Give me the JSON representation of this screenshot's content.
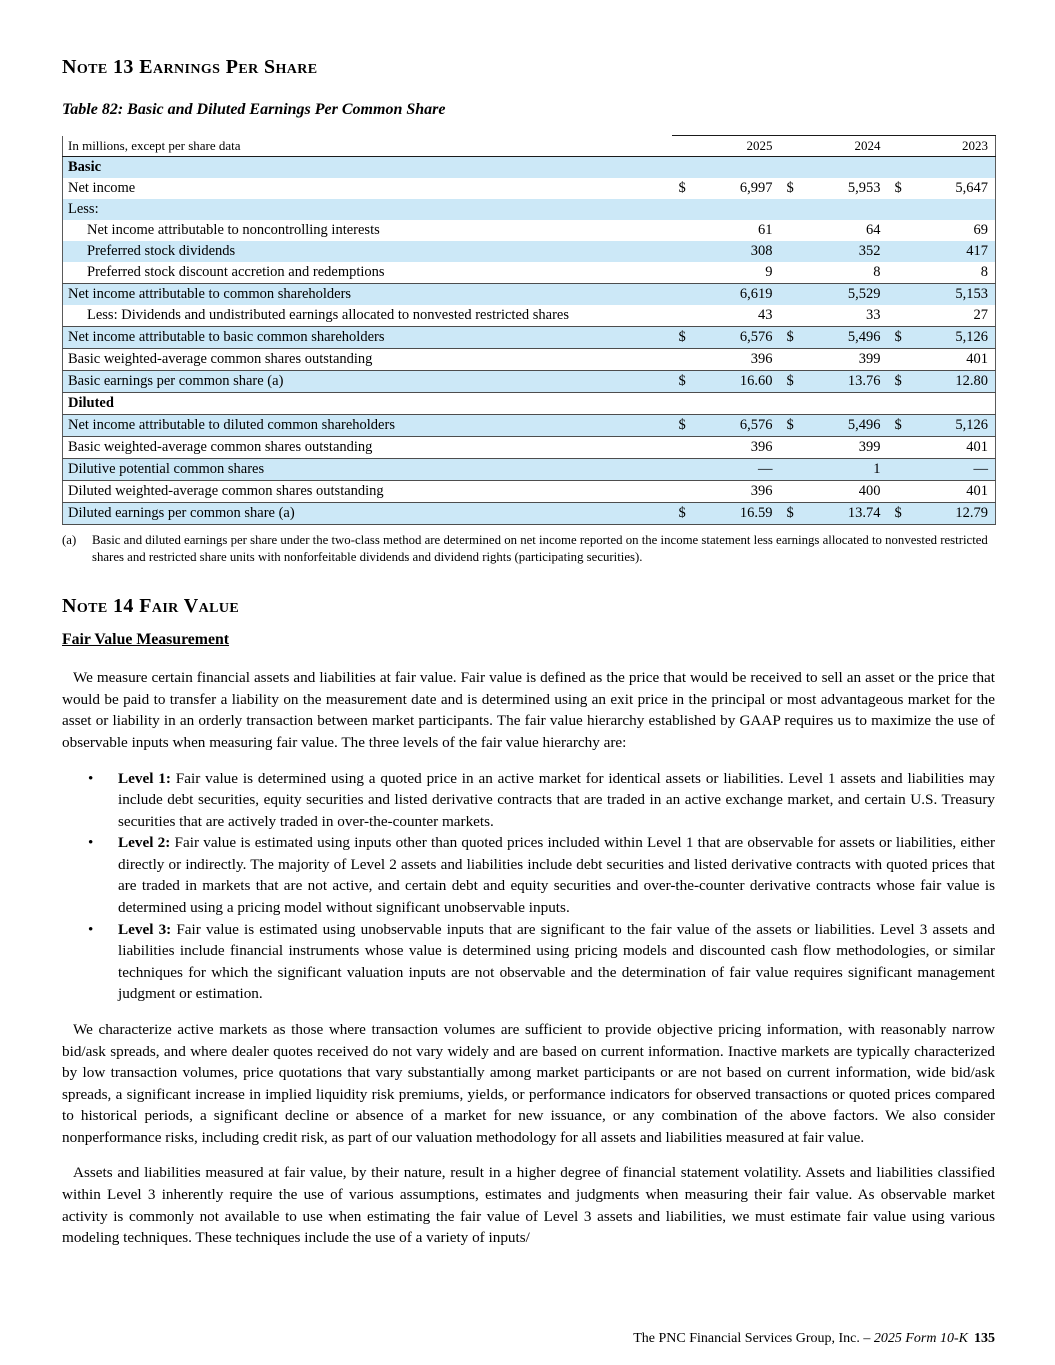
{
  "colors": {
    "row_highlight": "#cce8f7",
    "table_rule": "#4d4d4d",
    "header_rule": "#1a1a1a"
  },
  "note13": {
    "heading": "Note 13 Earnings Per Share",
    "table_title": "Table 82: Basic and Diluted Earnings Per Common Share",
    "table": {
      "unit_label": "In millions, except per share data",
      "years": [
        "2025",
        "2024",
        "2023"
      ],
      "rows": [
        {
          "label": "Basic",
          "bold": true,
          "indent": 0,
          "bg": "blue",
          "rule_top": false,
          "dollar": false,
          "values": [
            "",
            "",
            ""
          ]
        },
        {
          "label": "Net income",
          "bold": false,
          "indent": 0,
          "bg": "white",
          "rule_top": false,
          "dollar": true,
          "values": [
            "6,997",
            "5,953",
            "5,647"
          ]
        },
        {
          "label": "Less:",
          "bold": false,
          "indent": 0,
          "bg": "blue",
          "rule_top": false,
          "dollar": false,
          "values": [
            "",
            "",
            ""
          ]
        },
        {
          "label": "Net income attributable to noncontrolling interests",
          "bold": false,
          "indent": 1,
          "bg": "white",
          "rule_top": false,
          "dollar": false,
          "values": [
            "61",
            "64",
            "69"
          ]
        },
        {
          "label": "Preferred stock dividends",
          "bold": false,
          "indent": 1,
          "bg": "blue",
          "rule_top": false,
          "dollar": false,
          "values": [
            "308",
            "352",
            "417"
          ]
        },
        {
          "label": "Preferred stock discount accretion and redemptions",
          "bold": false,
          "indent": 1,
          "bg": "white",
          "rule_top": false,
          "dollar": false,
          "values": [
            "9",
            "8",
            "8"
          ]
        },
        {
          "label": "Net income attributable to common shareholders",
          "bold": false,
          "indent": 0,
          "bg": "blue",
          "rule_top": true,
          "dollar": false,
          "values": [
            "6,619",
            "5,529",
            "5,153"
          ]
        },
        {
          "label": "Less: Dividends and undistributed earnings allocated to nonvested restricted shares",
          "bold": false,
          "indent": 1,
          "bg": "white",
          "rule_top": false,
          "dollar": false,
          "values": [
            "43",
            "33",
            "27"
          ]
        },
        {
          "label": "Net income attributable to basic common shareholders",
          "bold": false,
          "indent": 0,
          "bg": "blue",
          "rule_top": true,
          "dollar": true,
          "values": [
            "6,576",
            "5,496",
            "5,126"
          ]
        },
        {
          "label": "Basic weighted-average common shares outstanding",
          "bold": false,
          "indent": 0,
          "bg": "white",
          "rule_top": true,
          "dollar": false,
          "values": [
            "396",
            "399",
            "401"
          ]
        },
        {
          "label": "Basic earnings per common share (a)",
          "bold": false,
          "indent": 0,
          "bg": "blue",
          "rule_top": true,
          "dollar": true,
          "values": [
            "16.60",
            "13.76",
            "12.80"
          ]
        },
        {
          "label": "Diluted",
          "bold": true,
          "indent": 0,
          "bg": "white",
          "rule_top": true,
          "dollar": false,
          "values": [
            "",
            "",
            ""
          ]
        },
        {
          "label": "Net income attributable to diluted common shareholders",
          "bold": false,
          "indent": 0,
          "bg": "blue",
          "rule_top": true,
          "dollar": true,
          "values": [
            "6,576",
            "5,496",
            "5,126"
          ]
        },
        {
          "label": "Basic weighted-average common shares outstanding",
          "bold": false,
          "indent": 0,
          "bg": "white",
          "rule_top": true,
          "dollar": false,
          "values": [
            "396",
            "399",
            "401"
          ]
        },
        {
          "label": "Dilutive potential common shares",
          "bold": false,
          "indent": 0,
          "bg": "blue",
          "rule_top": true,
          "dollar": false,
          "values": [
            "—",
            "1",
            "—"
          ]
        },
        {
          "label": "Diluted weighted-average common shares outstanding",
          "bold": false,
          "indent": 0,
          "bg": "white",
          "rule_top": true,
          "dollar": false,
          "values": [
            "396",
            "400",
            "401"
          ]
        },
        {
          "label": "Diluted earnings per common share (a)",
          "bold": false,
          "indent": 0,
          "bg": "blue",
          "rule_top": true,
          "rule_bottom": true,
          "dollar": true,
          "values": [
            "16.59",
            "13.74",
            "12.79"
          ]
        }
      ],
      "footnote_marker": "(a)",
      "footnote_text": "Basic and diluted earnings per share under the two-class method are determined on net income reported on the income statement less earnings allocated to nonvested restricted shares and restricted share units with nonforfeitable dividends and dividend rights (participating securities)."
    }
  },
  "note14": {
    "heading": "Note 14 Fair Value",
    "subheading": "Fair Value Measurement",
    "para1": "We measure certain financial assets and liabilities at fair value. Fair value is defined as the price that would be received to sell an asset or the price that would be paid to transfer a liability on the measurement date and is determined using an exit price in the principal or most advantageous market for the asset or liability in an orderly transaction between market participants. The fair value hierarchy established by GAAP requires us to maximize the use of observable inputs when measuring fair value. The three levels of the fair value hierarchy are:",
    "bullet_glyph": "•",
    "bullets": [
      {
        "lead": "Level 1:",
        "text": " Fair value is determined using a quoted price in an active market for identical assets or liabilities. Level 1 assets and liabilities may include debt securities, equity securities and listed derivative contracts that are traded in an active exchange market, and certain U.S. Treasury securities that are actively traded in over-the-counter markets."
      },
      {
        "lead": "Level 2:",
        "text": " Fair value is estimated using inputs other than quoted prices included within Level 1 that are observable for assets or liabilities, either directly or indirectly. The majority of Level 2 assets and liabilities include debt securities and listed derivative contracts with quoted prices that are traded in markets that are not active, and certain debt and equity securities and over-the-counter derivative contracts whose fair value is determined using a pricing model without significant unobservable inputs."
      },
      {
        "lead": "Level 3:",
        "text": " Fair value is estimated using unobservable inputs that are significant to the fair value of the assets or liabilities. Level 3 assets and liabilities include financial instruments whose value is determined using pricing models and discounted cash flow methodologies, or similar techniques for which the significant valuation inputs are not observable and the determination of fair value requires significant management judgment or estimation."
      }
    ],
    "para2": "We characterize active markets as those where transaction volumes are sufficient to provide objective pricing information, with reasonably narrow bid/ask spreads, and where dealer quotes received do not vary widely and are based on current information. Inactive markets are typically characterized by low transaction volumes, price quotations that vary substantially among market participants or are not based on current information, wide bid/ask spreads, a significant increase in implied liquidity risk premiums, yields, or performance indicators for observed transactions or quoted prices compared to historical periods, a significant decline or absence of a market for new issuance, or any combination of the above factors. We also consider nonperformance risks, including credit risk, as part of our valuation methodology for all assets and liabilities measured at fair value.",
    "para3": "Assets and liabilities measured at fair value, by their nature, result in a higher degree of financial statement volatility. Assets and liabilities classified within Level 3 inherently require the use of various assumptions, estimates and judgments when measuring their fair value. As observable market activity is commonly not available to use when estimating the fair value of Level 3 assets and liabilities, we must estimate fair value using various modeling techniques. These techniques include the use of a variety of inputs/"
  },
  "footer": {
    "company": "The PNC Financial Services Group, Inc. – ",
    "form": "2025 Form 10-K",
    "page_number": "135"
  }
}
